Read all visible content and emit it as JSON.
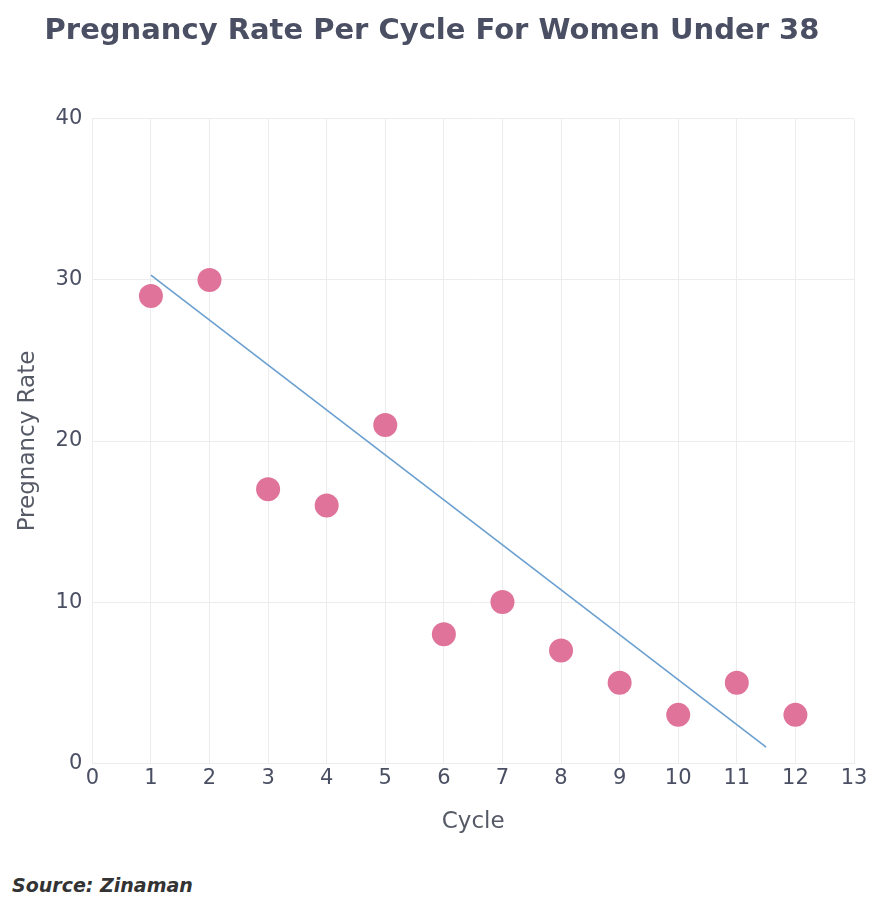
{
  "chart_data": {
    "type": "scatter",
    "title": "Pregnancy Rate Per Cycle For Women Under 38",
    "x_label": "Cycle",
    "y_label": "Pregnancy Rate",
    "source": "Source: Zinaman",
    "series": [
      {
        "type": "scatter",
        "marker": "circle",
        "color": "#df7399",
        "x": [
          1,
          2,
          3,
          4,
          5,
          6,
          7,
          8,
          9,
          10,
          11,
          12
        ],
        "values": [
          29,
          30,
          17,
          16,
          21,
          8,
          10,
          7,
          5,
          3,
          5,
          3
        ]
      },
      {
        "type": "line",
        "line_style": "solid",
        "color": "#6a9fd0",
        "x": [
          1,
          11.5
        ],
        "values": [
          30.3,
          1
        ]
      }
    ],
    "xlim": [
      0,
      13
    ],
    "xticks": [
      0,
      1,
      2,
      3,
      4,
      5,
      6,
      7,
      8,
      9,
      10,
      11,
      12,
      13
    ],
    "ylim": [
      0,
      40
    ],
    "yticks": [
      0,
      10,
      20,
      30,
      40
    ],
    "grid": true
  }
}
